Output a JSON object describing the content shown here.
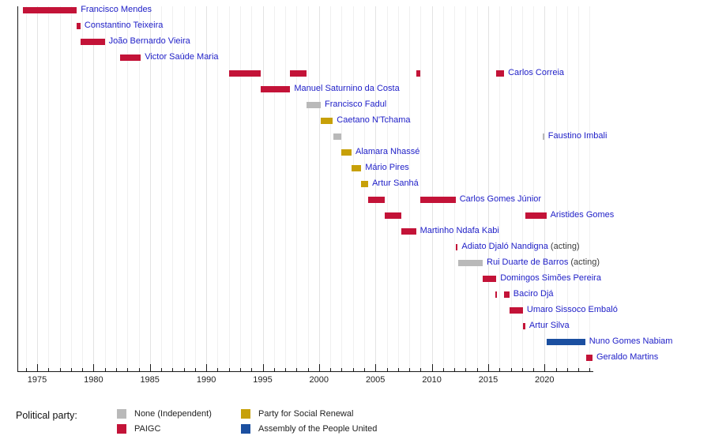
{
  "chart_data": {
    "type": "bar",
    "subtype": "timeline-gantt",
    "title": "",
    "legend_title": "Political party:",
    "link_color": "#2121c8",
    "x_axis": {
      "start": 1973.25,
      "end": 2024.25,
      "minor_step": 1,
      "major_ticks": [
        1975,
        1980,
        1985,
        1990,
        1995,
        2000,
        2005,
        2010,
        2015,
        2020
      ]
    },
    "parties": [
      {
        "id": "none",
        "label": "None (Independent)",
        "color": "#b9b9b9"
      },
      {
        "id": "paigc",
        "label": "PAIGC",
        "color": "#c31338"
      },
      {
        "id": "prs",
        "label": "Party for Social Renewal",
        "color": "#c7a008"
      },
      {
        "id": "apu",
        "label": "Assembly of the People United",
        "color": "#1b4fa0"
      }
    ],
    "rows": [
      {
        "name": "Francisco Mendes",
        "party": "paigc",
        "terms": [
          [
            1973.75,
            1978.52
          ]
        ]
      },
      {
        "name": "Constantino Teixeira",
        "party": "paigc",
        "terms": [
          [
            1978.52,
            1978.85
          ]
        ]
      },
      {
        "name": "João Bernardo Vieira",
        "party": "paigc",
        "terms": [
          [
            1978.85,
            1981.0
          ]
        ]
      },
      {
        "name": "Victor Saúde Maria",
        "party": "paigc",
        "terms": [
          [
            1982.37,
            1984.19
          ]
        ]
      },
      {
        "name": "Carlos Correia",
        "party": "paigc",
        "terms": [
          [
            1992.0,
            1994.82
          ],
          [
            1997.45,
            1998.92
          ],
          [
            2008.6,
            2009.0
          ],
          [
            2015.72,
            2016.41
          ]
        ]
      },
      {
        "name": "Manuel Saturnino da Costa",
        "party": "paigc",
        "terms": [
          [
            1994.82,
            1997.45
          ]
        ]
      },
      {
        "name": "Francisco Fadul",
        "party": "none",
        "terms": [
          [
            1998.92,
            2000.15
          ]
        ]
      },
      {
        "name": "Caetano N'Tchama",
        "party": "prs",
        "terms": [
          [
            2000.15,
            2001.22
          ]
        ]
      },
      {
        "name": "Faustino Imbali",
        "party": "none",
        "terms": [
          [
            2001.24,
            2001.95
          ],
          [
            2019.82,
            2019.96
          ]
        ]
      },
      {
        "name": "Alamara Nhassé",
        "party": "prs",
        "terms": [
          [
            2001.95,
            2002.88
          ]
        ]
      },
      {
        "name": "Mário Pires",
        "party": "prs",
        "terms": [
          [
            2002.88,
            2003.74
          ]
        ]
      },
      {
        "name": "Artur Sanhá",
        "party": "prs",
        "terms": [
          [
            2003.74,
            2004.36
          ]
        ]
      },
      {
        "name": "Carlos Gomes Júnior",
        "party": "paigc",
        "terms": [
          [
            2004.36,
            2005.84
          ],
          [
            2009.0,
            2012.11
          ]
        ]
      },
      {
        "name": "Aristides Gomes",
        "party": "paigc",
        "terms": [
          [
            2005.84,
            2007.28
          ],
          [
            2018.29,
            2020.16
          ]
        ]
      },
      {
        "name": "Martinho Ndafa Kabi",
        "party": "paigc",
        "terms": [
          [
            2007.28,
            2008.6
          ]
        ]
      },
      {
        "name": "Adiato Djaló Nandigna",
        "party": "paigc",
        "suffix": "(acting)",
        "terms": [
          [
            2012.11,
            2012.3
          ]
        ]
      },
      {
        "name": "Rui Duarte de Barros",
        "party": "none",
        "suffix": "(acting)",
        "terms": [
          [
            2012.37,
            2014.51
          ]
        ]
      },
      {
        "name": "Domingos Simões Pereira",
        "party": "paigc",
        "terms": [
          [
            2014.51,
            2015.72
          ]
        ]
      },
      {
        "name": "Baciro Djá",
        "party": "paigc",
        "terms": [
          [
            2015.63,
            2015.72
          ],
          [
            2016.41,
            2016.88
          ]
        ]
      },
      {
        "name": "Umaro Sissoco Embaló",
        "party": "paigc",
        "terms": [
          [
            2016.88,
            2018.08
          ]
        ]
      },
      {
        "name": "Artur Silva",
        "party": "paigc",
        "terms": [
          [
            2018.1,
            2018.29
          ]
        ]
      },
      {
        "name": "Nuno Gomes Nabiam",
        "party": "apu",
        "terms": [
          [
            2020.16,
            2023.6
          ]
        ]
      },
      {
        "name": "Geraldo Martins",
        "party": "paigc",
        "terms": [
          [
            2023.66,
            2024.25
          ]
        ]
      }
    ]
  }
}
